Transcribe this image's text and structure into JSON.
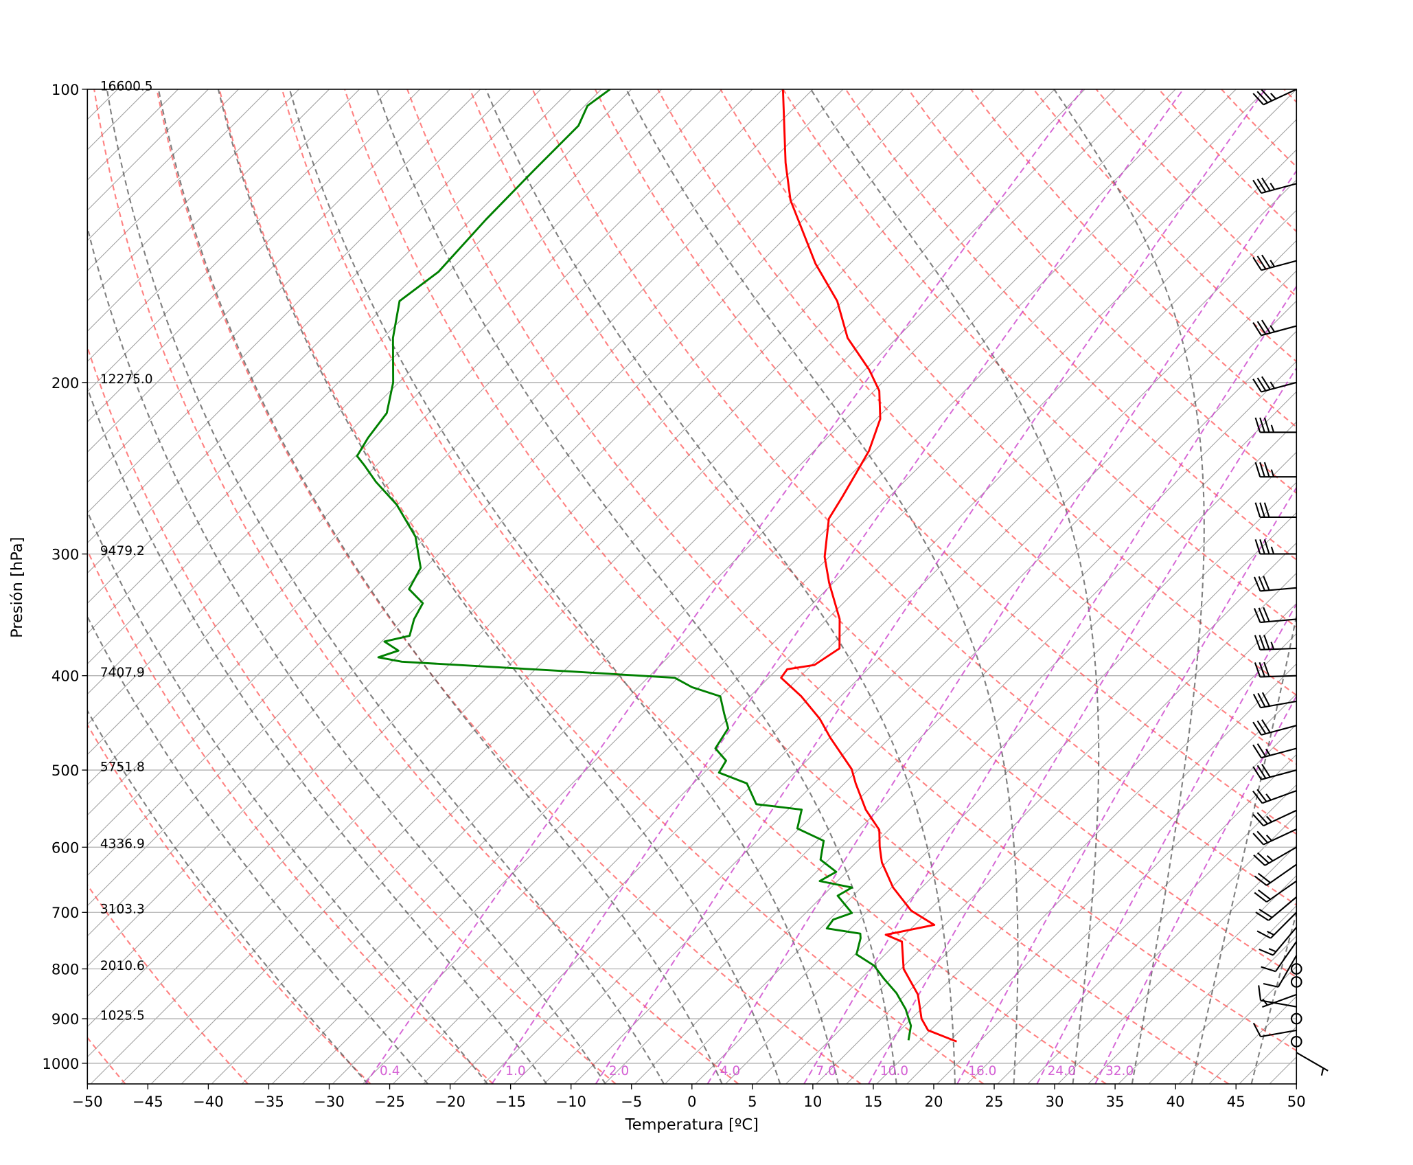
{
  "chart_data": {
    "type": "skewt",
    "xlabel": "Temperatura [ºC]",
    "ylabel": "Presión [hPa]",
    "xlim": [
      -50,
      50
    ],
    "ylim": [
      1050,
      100
    ],
    "log_y": true,
    "grid": true,
    "xticks": [
      {
        "value": -50,
        "label": "−50"
      },
      {
        "value": -45,
        "label": "−45"
      },
      {
        "value": -40,
        "label": "−40"
      },
      {
        "value": -35,
        "label": "−35"
      },
      {
        "value": -30,
        "label": "−30"
      },
      {
        "value": -25,
        "label": "−25"
      },
      {
        "value": -20,
        "label": "−20"
      },
      {
        "value": -15,
        "label": "−15"
      },
      {
        "value": -10,
        "label": "−10"
      },
      {
        "value": -5,
        "label": "−5"
      },
      0,
      5,
      10,
      15,
      20,
      25,
      30,
      35,
      40,
      45,
      50
    ],
    "yticks": [
      100,
      200,
      300,
      400,
      500,
      600,
      700,
      800,
      900,
      1000
    ],
    "isotherm_interval": 2.5,
    "isotherm_color": "#a0a0a0",
    "dry_adiabats": {
      "color": "#ff4d4d",
      "values": [
        -50,
        -40,
        -30,
        -20,
        -10,
        0,
        10,
        20,
        30,
        40,
        50,
        60,
        70,
        80,
        90,
        100,
        110,
        120,
        130,
        140,
        150,
        160,
        170,
        180,
        190,
        200
      ]
    },
    "moist_adiabats": {
      "color": "#555555",
      "values": [
        -30,
        -25,
        -20,
        -15,
        -10,
        -5,
        0,
        5,
        10,
        15,
        20,
        25,
        30,
        35,
        40,
        45
      ]
    },
    "mixing_ratios": {
      "color": "#cc44cc",
      "values": [
        {
          "value": 0.4,
          "label": "0.4"
        },
        {
          "value": 1,
          "label": "1.0"
        },
        {
          "value": 2,
          "label": "2.0"
        },
        {
          "value": 4,
          "label": "4.0"
        },
        {
          "value": 7,
          "label": "7.0"
        },
        {
          "value": 10,
          "label": "10.0"
        },
        {
          "value": 16,
          "label": "16.0"
        },
        {
          "value": 24,
          "label": "24.0"
        },
        {
          "value": 32,
          "label": "32.0"
        }
      ]
    },
    "height_labels": {
      "pressure": [
        100,
        200,
        300,
        400,
        500,
        600,
        700,
        800,
        900
      ],
      "labels": [
        "16600.5",
        "12275.0",
        "9479.2",
        "7407.9",
        "5751.8",
        "4336.9",
        "3103.3",
        "2010.6",
        "1025.5"
      ]
    },
    "series": [
      {
        "color": "#ff0000",
        "pressure": [
          950,
          925,
          900,
          850,
          800,
          750,
          738,
          721,
          697,
          660,
          622,
          599,
          576,
          549,
          516,
          499,
          463,
          443,
          420,
          402,
          394,
          390,
          375,
          350,
          321,
          302,
          276,
          262,
          248,
          235,
          218,
          204,
          194,
          180,
          165,
          151,
          130,
          119,
          100
        ],
        "values": [
          18.4,
          15.1,
          13.6,
          11.3,
          8.0,
          5.6,
          3.7,
          6.9,
          3.8,
          0.4,
          -2.6,
          -4.1,
          -5.5,
          -8.3,
          -11.3,
          -12.8,
          -17.2,
          -19.6,
          -23.0,
          -26.2,
          -26.4,
          -24.5,
          -23.8,
          -26.2,
          -30.1,
          -32.6,
          -35.4,
          -36.1,
          -36.9,
          -37.7,
          -39.4,
          -41.8,
          -44.4,
          -48.8,
          -52.7,
          -57.6,
          -64.9,
          -68.4,
          -74.7
        ]
      },
      {
        "color": "#008000",
        "pressure": [
          947,
          915,
          880,
          847,
          819,
          794,
          773,
          744,
          736,
          727,
          712,
          701,
          673,
          660,
          650,
          636,
          618,
          591,
          574,
          549,
          542,
          516,
          503,
          489,
          475,
          453,
          438,
          420,
          411,
          402,
          396,
          387,
          383,
          377,
          369,
          364,
          350,
          337,
          326,
          310,
          288,
          267,
          253,
          243,
          238,
          228,
          215,
          200,
          180,
          165,
          154,
          136,
          121,
          109,
          104,
          100
        ],
        "values": [
          14.3,
          13.3,
          11.5,
          9.4,
          7.2,
          5.3,
          2.9,
          1.9,
          1.5,
          -1.7,
          -1.9,
          -0.9,
          -3.5,
          -3.0,
          -6.2,
          -5.6,
          -7.9,
          -9.2,
          -12.4,
          -13.6,
          -17.8,
          -20.3,
          -23.5,
          -23.9,
          -25.8,
          -26.4,
          -27.9,
          -29.7,
          -32.8,
          -35.0,
          -44.2,
          -58.9,
          -61.2,
          -60.1,
          -62.0,
          -60.4,
          -61.4,
          -62.0,
          -64.3,
          -65.1,
          -68.1,
          -72.3,
          -75.9,
          -78.3,
          -79.6,
          -80.2,
          -80.7,
          -82.7,
          -86.4,
          -88.9,
          -88.1,
          -88.5,
          -88.6,
          -88.6,
          -89.5,
          -89.0
        ]
      }
    ],
    "winds": {
      "pressure": [
        100,
        125,
        150,
        175,
        200,
        225,
        250,
        275,
        300,
        325,
        350,
        375,
        400,
        425,
        450,
        475,
        500,
        525,
        550,
        575,
        600,
        625,
        650,
        675,
        700,
        725,
        750,
        775,
        800,
        825,
        850,
        875,
        900,
        925,
        950,
        975
      ],
      "speed": [
        35,
        35,
        35,
        35,
        35,
        35,
        35,
        30,
        35,
        30,
        30,
        35,
        30,
        30,
        30,
        25,
        30,
        25,
        25,
        25,
        25,
        20,
        20,
        20,
        15,
        15,
        10,
        10,
        0,
        0,
        5,
        10,
        0,
        10,
        0,
        5
      ],
      "direction": [
        245,
        255,
        255,
        255,
        255,
        270,
        270,
        270,
        270,
        265,
        265,
        268,
        268,
        260,
        255,
        255,
        255,
        250,
        245,
        245,
        240,
        235,
        235,
        230,
        225,
        220,
        215,
        210,
        0,
        0,
        250,
        280,
        0,
        260,
        0,
        120
      ]
    }
  }
}
